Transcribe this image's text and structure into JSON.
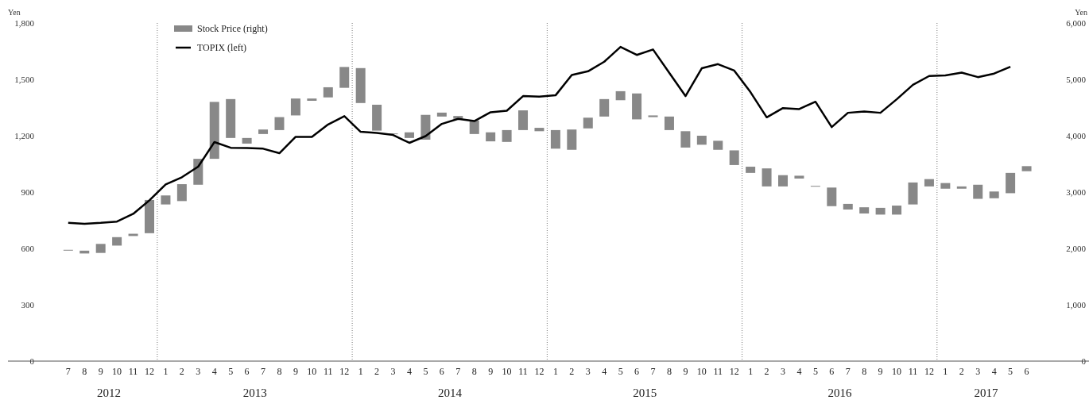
{
  "chart_data": {
    "type": "bar",
    "ylabel": "Yen",
    "y2label": "Yen",
    "x": [
      "2012-07",
      "2012-08",
      "2012-09",
      "2012-10",
      "2012-11",
      "2012-12",
      "2013-01",
      "2013-02",
      "2013-03",
      "2013-04",
      "2013-05",
      "2013-06",
      "2013-07",
      "2013-08",
      "2013-09",
      "2013-10",
      "2013-11",
      "2013-12",
      "2014-01",
      "2014-02",
      "2014-03",
      "2014-04",
      "2014-05",
      "2014-06",
      "2014-07",
      "2014-08",
      "2014-09",
      "2014-10",
      "2014-11",
      "2014-12",
      "2015-01",
      "2015-02",
      "2015-03",
      "2015-04",
      "2015-05",
      "2015-06",
      "2015-07",
      "2015-08",
      "2015-09",
      "2015-10",
      "2015-11",
      "2015-12",
      "2016-01",
      "2016-02",
      "2016-03",
      "2016-04",
      "2016-05",
      "2016-06",
      "2016-07",
      "2016-08",
      "2016-09",
      "2016-10",
      "2016-11",
      "2016-12",
      "2017-01",
      "2017-02",
      "2017-03",
      "2017-04",
      "2017-05",
      "2017-06"
    ],
    "xlim": [
      "2012-03-10",
      "2017-09-27"
    ],
    "xticks": [
      {
        "value": "2012-07",
        "label": "7"
      },
      {
        "value": "2012-08",
        "label": "8"
      },
      {
        "value": "2012-09",
        "label": "9"
      },
      {
        "value": "2012-10",
        "label": "10"
      },
      {
        "value": "2012-11",
        "label": "11"
      },
      {
        "value": "2012-12",
        "label": "12"
      },
      {
        "value": "2013-01",
        "label": "1"
      },
      {
        "value": "2013-02",
        "label": "2"
      },
      {
        "value": "2013-03",
        "label": "3"
      },
      {
        "value": "2013-04",
        "label": "4"
      },
      {
        "value": "2013-05",
        "label": "5"
      },
      {
        "value": "2013-06",
        "label": "6"
      },
      {
        "value": "2013-07",
        "label": "7"
      },
      {
        "value": "2013-08",
        "label": "8"
      },
      {
        "value": "2013-09",
        "label": "9"
      },
      {
        "value": "2013-10",
        "label": "10"
      },
      {
        "value": "2013-11",
        "label": "11"
      },
      {
        "value": "2013-12",
        "label": "12"
      },
      {
        "value": "2014-01",
        "label": "1"
      },
      {
        "value": "2014-02",
        "label": "2"
      },
      {
        "value": "2014-03",
        "label": "3"
      },
      {
        "value": "2014-04",
        "label": "4"
      },
      {
        "value": "2014-05",
        "label": "5"
      },
      {
        "value": "2014-06",
        "label": "6"
      },
      {
        "value": "2014-07",
        "label": "7"
      },
      {
        "value": "2014-08",
        "label": "8"
      },
      {
        "value": "2014-09",
        "label": "9"
      },
      {
        "value": "2014-10",
        "label": "10"
      },
      {
        "value": "2014-11",
        "label": "11"
      },
      {
        "value": "2014-12",
        "label": "12"
      },
      {
        "value": "2015-01",
        "label": "1"
      },
      {
        "value": "2015-02",
        "label": "2"
      },
      {
        "value": "2015-03",
        "label": "3"
      },
      {
        "value": "2015-04",
        "label": "4"
      },
      {
        "value": "2015-05",
        "label": "5"
      },
      {
        "value": "2015-06",
        "label": "6"
      },
      {
        "value": "2015-07",
        "label": "7"
      },
      {
        "value": "2015-08",
        "label": "8"
      },
      {
        "value": "2015-09",
        "label": "9"
      },
      {
        "value": "2015-10",
        "label": "10"
      },
      {
        "value": "2015-11",
        "label": "11"
      },
      {
        "value": "2015-12",
        "label": "12"
      },
      {
        "value": "2016-01",
        "label": "1"
      },
      {
        "value": "2016-02",
        "label": "2"
      },
      {
        "value": "2016-03",
        "label": "3"
      },
      {
        "value": "2016-04",
        "label": "4"
      },
      {
        "value": "2016-05",
        "label": "5"
      },
      {
        "value": "2016-06",
        "label": "6"
      },
      {
        "value": "2016-07",
        "label": "7"
      },
      {
        "value": "2016-08",
        "label": "8"
      },
      {
        "value": "2016-09",
        "label": "9"
      },
      {
        "value": "2016-10",
        "label": "10"
      },
      {
        "value": "2016-11",
        "label": "11"
      },
      {
        "value": "2016-12",
        "label": "12"
      },
      {
        "value": "2017-01",
        "label": "1"
      },
      {
        "value": "2017-02",
        "label": "2"
      },
      {
        "value": "2017-03",
        "label": "3"
      },
      {
        "value": "2017-04",
        "label": "4"
      },
      {
        "value": "2017-05",
        "label": "5"
      },
      {
        "value": "2017-06",
        "label": "6"
      }
    ],
    "ylim": [
      0,
      1800
    ],
    "yticks": [
      0,
      300,
      600,
      900,
      {
        "value": 1200,
        "label": "1,200"
      },
      {
        "value": 1500,
        "label": "1,500"
      },
      {
        "value": 1800,
        "label": "1,800"
      }
    ],
    "y2lim": [
      0,
      6000
    ],
    "y2ticks": [
      0,
      {
        "value": 1000,
        "label": "1,000"
      },
      {
        "value": 2000,
        "label": "2,000"
      },
      {
        "value": 3000,
        "label": "3,000"
      },
      {
        "value": 4000,
        "label": "4,000"
      },
      {
        "value": 5000,
        "label": "5,000"
      },
      {
        "value": 6000,
        "label": "6,000"
      }
    ],
    "ref_lines": [
      {
        "axis": "x",
        "value": "2012-12-16",
        "line_style": "dotted",
        "color": "#555555"
      },
      {
        "axis": "x",
        "value": "2013-12-16",
        "line_style": "dotted",
        "color": "#555555"
      },
      {
        "axis": "x",
        "value": "2014-12-16",
        "line_style": "dotted",
        "color": "#555555"
      },
      {
        "axis": "x",
        "value": "2015-12-16",
        "line_style": "dotted",
        "color": "#555555"
      },
      {
        "axis": "x",
        "value": "2016-12-16",
        "line_style": "dotted",
        "color": "#555555"
      }
    ],
    "annotations": [
      "2012",
      "2013",
      "2014",
      "2015",
      "2016",
      "2017"
    ],
    "legend": "top left",
    "grid": false,
    "series": [
      {
        "name": "Stock Price (right)",
        "axis": "y2",
        "color": "#888888",
        "base": [
          1965,
          1910,
          1920,
          2050,
          2220,
          2270,
          2780,
          2840,
          3130,
          3590,
          3960,
          3860,
          4030,
          4100,
          4360,
          4620,
          4680,
          4850,
          4580,
          4090,
          4030,
          3960,
          3930,
          4340,
          4300,
          4030,
          3900,
          3890,
          4100,
          4080,
          3770,
          3750,
          4130,
          4340,
          4630,
          4290,
          4330,
          4100,
          3790,
          3840,
          3750,
          3480,
          3340,
          3100,
          3100,
          3240,
          3100,
          2750,
          2690,
          2620,
          2600,
          2600,
          2780,
          3100,
          3060,
          3060,
          2880,
          2890,
          2980,
          3370
        ],
        "values": [
          10,
          50,
          160,
          150,
          40,
          590,
          160,
          300,
          460,
          1010,
          690,
          100,
          80,
          230,
          300,
          40,
          180,
          370,
          620,
          460,
          10,
          100,
          440,
          70,
          50,
          240,
          160,
          210,
          350,
          60,
          330,
          360,
          190,
          310,
          160,
          460,
          30,
          240,
          290,
          160,
          160,
          260,
          110,
          320,
          200,
          50,
          10,
          330,
          100,
          110,
          120,
          160,
          390,
          130,
          100,
          40,
          250,
          120,
          360,
          90
        ]
      },
      {
        "name": "TOPIX (left)",
        "type": "line",
        "color": "#000000",
        "line_style": "solid",
        "marker": "none",
        "values": [
          736,
          731,
          736,
          743,
          784,
          856,
          941,
          979,
          1035,
          1166,
          1136,
          1135,
          1131,
          1107,
          1194,
          1194,
          1260,
          1304,
          1221,
          1215,
          1204,
          1162,
          1198,
          1263,
          1290,
          1278,
          1325,
          1333,
          1411,
          1408,
          1415,
          1523,
          1543,
          1594,
          1673,
          1630,
          1659,
          1535,
          1411,
          1559,
          1581,
          1547,
          1432,
          1298,
          1347,
          1342,
          1381,
          1246,
          1322,
          1329,
          1322,
          1394,
          1471,
          1518,
          1521,
          1536,
          1512,
          1531,
          1567,
          null
        ]
      }
    ]
  }
}
